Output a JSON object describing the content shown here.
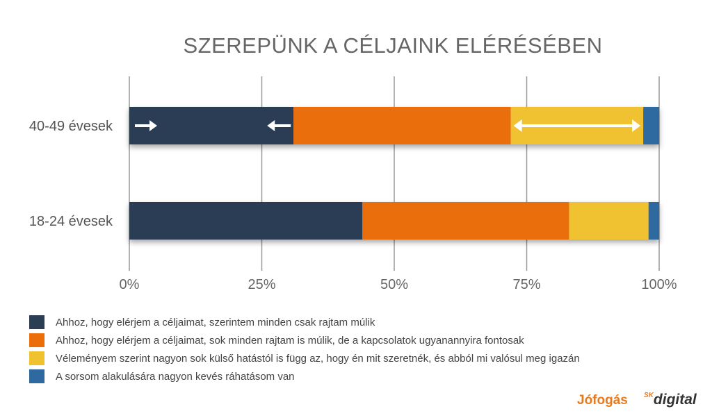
{
  "chart_data": {
    "type": "bar",
    "orientation": "horizontal",
    "stacked": "percent",
    "title": "SZEREPÜNK A CÉLJAINK ELÉRÉSÉBEN",
    "categories": [
      "40-49 évesek",
      "18-24 évesek"
    ],
    "xlim": [
      0,
      100
    ],
    "xticks": [
      "0%",
      "25%",
      "50%",
      "75%",
      "100%"
    ],
    "grid": "vertical",
    "legend_position": "bottom-left",
    "series": [
      {
        "name": "Ahhoz, hogy elérjem a céljaimat, szerintem minden csak rajtam múlik",
        "color": "#2b3e54",
        "values": [
          31,
          44
        ]
      },
      {
        "name": "Ahhoz, hogy elérjem a céljaimat, sok minden rajtam is múlik, de a kapcsolatok ugyanannyira fontosak",
        "color": "#eb6e0b",
        "values": [
          41,
          39
        ]
      },
      {
        "name": "Véleményem szerint nagyon sok külső hatástól is függ az, hogy én mit szeretnék, és abból mi valósul meg igazán",
        "color": "#f0c230",
        "values": [
          25,
          15
        ]
      },
      {
        "name": "A sorsom alakulására nagyon kevés ráhatásom van",
        "color": "#2e6aa0",
        "values": [
          3,
          2
        ]
      }
    ]
  },
  "logos": {
    "jofogas": "Jófogás",
    "sk": "SK",
    "digital": "digital"
  }
}
